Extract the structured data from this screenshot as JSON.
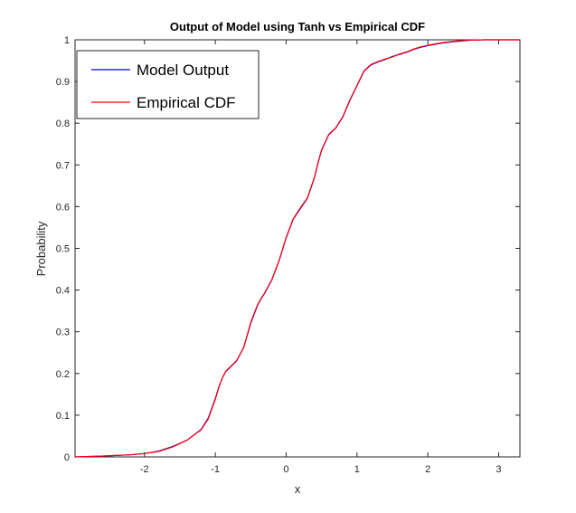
{
  "chart_data": {
    "type": "line",
    "title": "Output of Model using Tanh vs Empirical CDF",
    "xlabel": "x",
    "ylabel": "Probability",
    "xlim": [
      -2.98,
      3.3
    ],
    "ylim": [
      0,
      1
    ],
    "xticks": [
      -2,
      -1,
      0,
      1,
      2,
      3
    ],
    "xtick_labels": [
      "-2",
      "-1",
      "0",
      "1",
      "2",
      "3"
    ],
    "yticks": [
      0,
      0.1,
      0.2,
      0.3,
      0.4,
      0.5,
      0.6,
      0.7,
      0.8,
      0.9,
      1
    ],
    "ytick_labels": [
      "0",
      "0.1",
      "0.2",
      "0.3",
      "0.4",
      "0.5",
      "0.6",
      "0.7",
      "0.8",
      "0.9",
      "1"
    ],
    "grid": false,
    "legend_position": "top-left",
    "series": [
      {
        "name": "Model Output",
        "color": "#0000ff",
        "x": [
          -2.98,
          -2.6,
          -2.2,
          -2.0,
          -1.8,
          -1.6,
          -1.4,
          -1.2,
          -1.1,
          -1.0,
          -0.95,
          -0.9,
          -0.85,
          -0.8,
          -0.7,
          -0.6,
          -0.5,
          -0.45,
          -0.4,
          -0.35,
          -0.3,
          -0.2,
          -0.1,
          0.0,
          0.1,
          0.2,
          0.3,
          0.4,
          0.45,
          0.5,
          0.6,
          0.7,
          0.8,
          0.9,
          1.0,
          1.1,
          1.2,
          1.3,
          1.4,
          1.5,
          1.6,
          1.7,
          1.8,
          1.9,
          2.0,
          2.2,
          2.4,
          2.6,
          2.8,
          3.0,
          3.3
        ],
        "y": [
          0.0,
          0.002,
          0.005,
          0.008,
          0.014,
          0.025,
          0.04,
          0.066,
          0.093,
          0.14,
          0.168,
          0.19,
          0.205,
          0.213,
          0.23,
          0.262,
          0.32,
          0.343,
          0.365,
          0.38,
          0.393,
          0.425,
          0.47,
          0.525,
          0.57,
          0.595,
          0.62,
          0.67,
          0.705,
          0.735,
          0.772,
          0.788,
          0.815,
          0.855,
          0.89,
          0.925,
          0.94,
          0.947,
          0.953,
          0.96,
          0.965,
          0.97,
          0.977,
          0.982,
          0.986,
          0.992,
          0.996,
          0.999,
          1.0,
          1.0,
          1.0
        ]
      },
      {
        "name": "Empirical CDF",
        "color": "#ff0000",
        "x": [
          -2.98,
          -2.6,
          -2.2,
          -2.0,
          -1.8,
          -1.6,
          -1.4,
          -1.2,
          -1.1,
          -1.0,
          -0.95,
          -0.9,
          -0.85,
          -0.8,
          -0.7,
          -0.6,
          -0.5,
          -0.45,
          -0.4,
          -0.35,
          -0.3,
          -0.2,
          -0.1,
          0.0,
          0.1,
          0.2,
          0.3,
          0.4,
          0.45,
          0.5,
          0.6,
          0.7,
          0.8,
          0.9,
          1.0,
          1.1,
          1.2,
          1.3,
          1.4,
          1.5,
          1.6,
          1.7,
          1.8,
          1.9,
          2.0,
          2.2,
          2.4,
          2.6,
          2.8,
          3.0,
          3.3
        ],
        "y": [
          0.0,
          0.002,
          0.005,
          0.008,
          0.013,
          0.024,
          0.04,
          0.065,
          0.091,
          0.138,
          0.167,
          0.19,
          0.206,
          0.214,
          0.231,
          0.262,
          0.322,
          0.345,
          0.366,
          0.381,
          0.394,
          0.426,
          0.471,
          0.526,
          0.571,
          0.597,
          0.621,
          0.671,
          0.706,
          0.736,
          0.773,
          0.789,
          0.816,
          0.856,
          0.891,
          0.926,
          0.941,
          0.948,
          0.954,
          0.959,
          0.966,
          0.971,
          0.978,
          0.983,
          0.987,
          0.993,
          0.997,
          0.999,
          1.0,
          1.0,
          1.0
        ]
      }
    ]
  }
}
